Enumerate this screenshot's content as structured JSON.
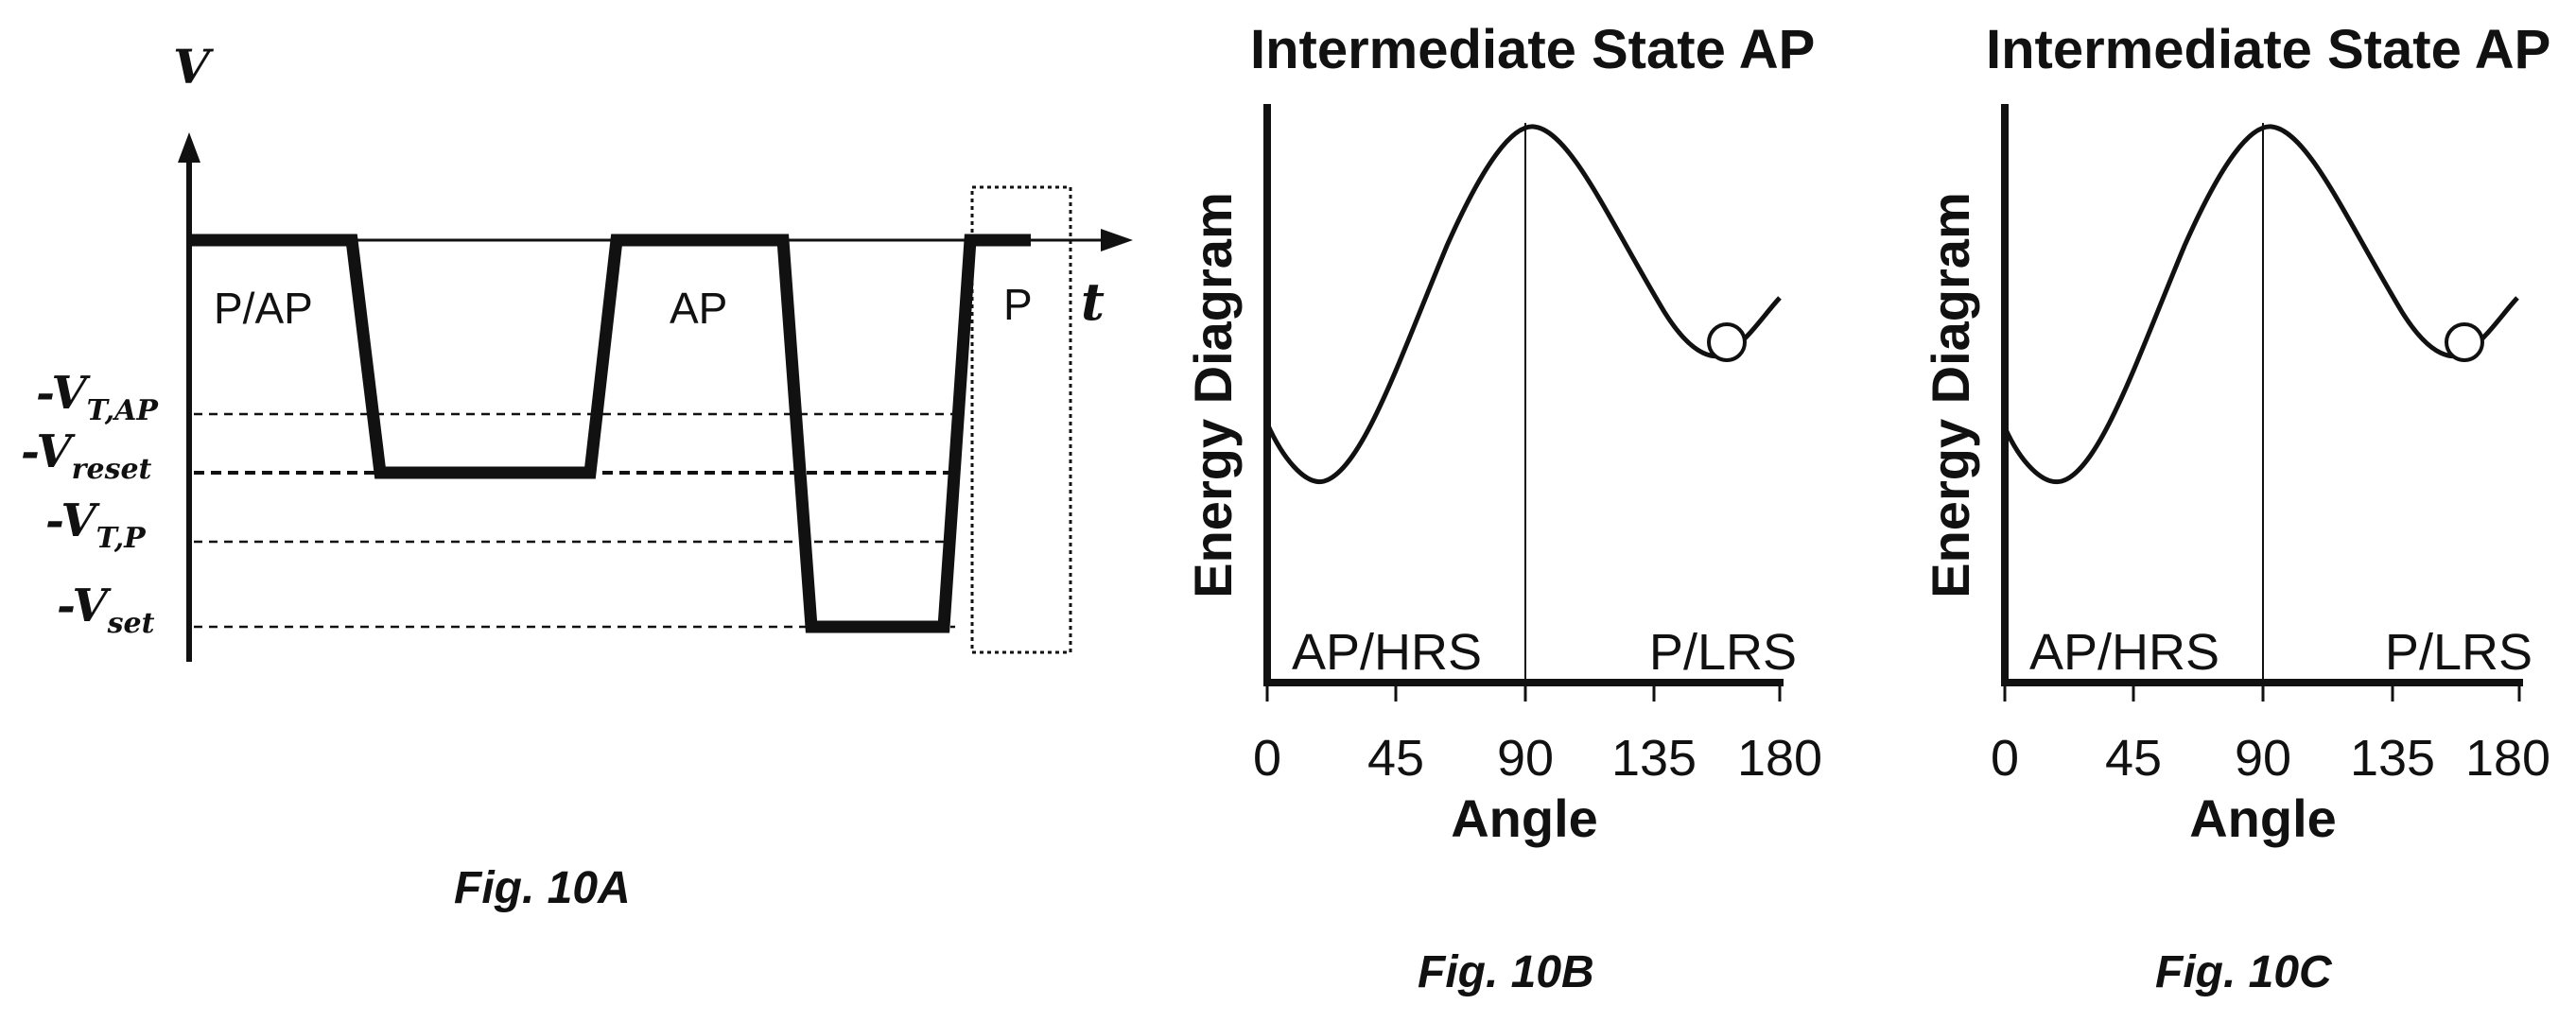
{
  "fig_a": {
    "axis_v": "V",
    "axis_t": "t",
    "state_labels": [
      "P/AP",
      "AP",
      "P"
    ],
    "levels": [
      {
        "sign": "-V",
        "sub": "T,AP"
      },
      {
        "sign": "-V",
        "sub": "reset"
      },
      {
        "sign": "-V",
        "sub": "T,P"
      },
      {
        "sign": "-V",
        "sub": "set"
      }
    ],
    "caption": "Fig. 10A"
  },
  "fig_b": {
    "title": "Intermediate State AP",
    "ylabel": "Energy Diagram",
    "xlabel": "Angle",
    "ticks": [
      "0",
      "45",
      "90",
      "135",
      "180"
    ],
    "region_left": "AP/HRS",
    "region_right": "P/LRS",
    "caption": "Fig. 10B"
  },
  "fig_c": {
    "title": "Intermediate State AP",
    "ylabel": "Energy Diagram",
    "xlabel": "Angle",
    "ticks": [
      "0",
      "45",
      "90",
      "135",
      "180"
    ],
    "region_left": "AP/HRS",
    "region_right": "P/LRS",
    "caption": "Fig. 10C"
  }
}
